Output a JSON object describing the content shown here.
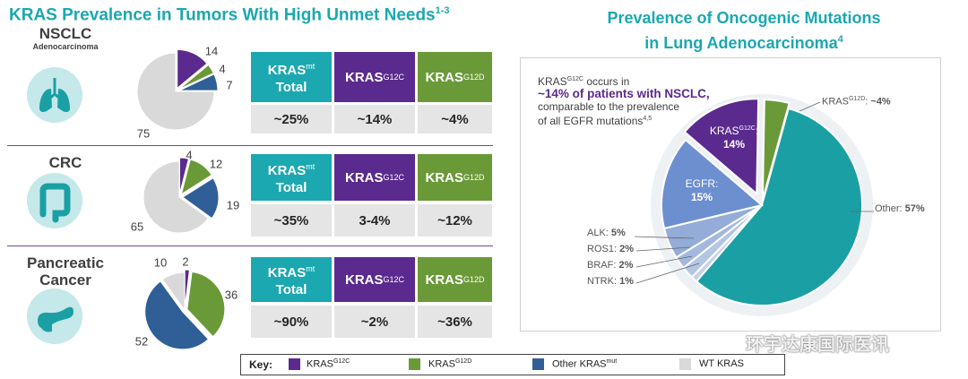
{
  "title_left": {
    "text": "KRAS Prevalence in Tumors With High Unmet Needs",
    "refs": "1-3"
  },
  "title_right": {
    "line1": "Prevalence of Oncogenic Mutations",
    "line2": "in Lung Adenocarcinoma",
    "ref": "4"
  },
  "table_headers": {
    "total": {
      "base": "KRAS",
      "sup": "mt",
      "suffix": "Total"
    },
    "g12c": {
      "base": "KRAS",
      "sup": "G12C"
    },
    "g12d": {
      "base": "KRAS",
      "sup": "G12D"
    }
  },
  "rows": [
    {
      "name": "NSCLC",
      "subname": "Adenocarcinoma",
      "total": "~25%",
      "g12c": "~14%",
      "g12d": "~4%"
    },
    {
      "name": "CRC",
      "subname": "",
      "total": "~35%",
      "g12c": "3-4%",
      "g12d": "~12%"
    },
    {
      "name": "Pancreatic Cancer",
      "subname": "",
      "total": "~90%",
      "g12c": "~2%",
      "g12d": "~36%"
    }
  ],
  "key": {
    "title": "Key:",
    "items": [
      {
        "base": "KRAS",
        "sup": "G12C",
        "color": "#5b2a8e"
      },
      {
        "base": "KRAS",
        "sup": "G12D",
        "color": "#6a9a38"
      },
      {
        "base": "Other KRAS",
        "sup": "mut",
        "color": "#2f5f96"
      },
      {
        "base": "WT KRAS",
        "sup": "",
        "color": "#d9d9d9"
      }
    ]
  },
  "callout": {
    "pre_base": "KRAS",
    "pre_sup": "G12C",
    "pre_after": " occurs in",
    "highlight": "~14% of patients with NSCLC,",
    "line3": "comparable to the prevalence",
    "line4": "of all EGFR mutations",
    "refs": "4,5"
  },
  "big_pie_labels": {
    "g12c_name": "KRAS",
    "g12c_sup": "G12C",
    "g12c_colon": ":",
    "g12c_value": "14%",
    "egfr_name": "EGFR:",
    "egfr_value": "15%",
    "g12d_name": "KRAS",
    "g12d_sup": "G12D",
    "g12d_colon": ": ",
    "g12d_value": "~4%",
    "other_name": "Other: ",
    "other_value": "57%",
    "alk_name": "ALK: ",
    "alk_value": "5%",
    "ros1_name": "ROS1: ",
    "ros1_value": "2%",
    "braf_name": "BRAF: ",
    "braf_value": "2%",
    "ntrk_name": "NTRK: ",
    "ntrk_value": "1%"
  },
  "watermark": "环宇达康国际医讯",
  "chart_data": [
    {
      "type": "pie",
      "title": "NSCLC Adenocarcinoma",
      "slices": [
        {
          "label": "KRAS G12C",
          "value": 14,
          "color": "#5b2a8e"
        },
        {
          "label": "KRAS G12D",
          "value": 4,
          "color": "#6a9a38"
        },
        {
          "label": "Other KRAS mut",
          "value": 7,
          "color": "#2f5f96"
        },
        {
          "label": "WT KRAS",
          "value": 75,
          "color": "#d9d9d9"
        }
      ]
    },
    {
      "type": "pie",
      "title": "CRC",
      "slices": [
        {
          "label": "KRAS G12C",
          "value": 4,
          "color": "#5b2a8e"
        },
        {
          "label": "KRAS G12D",
          "value": 12,
          "color": "#6a9a38"
        },
        {
          "label": "Other KRAS mut",
          "value": 19,
          "color": "#2f5f96"
        },
        {
          "label": "WT KRAS",
          "value": 65,
          "color": "#d9d9d9"
        }
      ]
    },
    {
      "type": "pie",
      "title": "Pancreatic Cancer",
      "slices": [
        {
          "label": "KRAS G12C",
          "value": 2,
          "color": "#5b2a8e"
        },
        {
          "label": "KRAS G12D",
          "value": 36,
          "color": "#6a9a38"
        },
        {
          "label": "Other KRAS mut",
          "value": 52,
          "color": "#2f5f96"
        },
        {
          "label": "WT KRAS",
          "value": 10,
          "color": "#d9d9d9"
        }
      ]
    },
    {
      "type": "pie",
      "title": "Prevalence of Oncogenic Mutations in Lung Adenocarcinoma",
      "slices": [
        {
          "label": "KRAS G12C",
          "value": 14,
          "color": "#5b2a8e"
        },
        {
          "label": "KRAS G12D",
          "value": 4,
          "color": "#6a9a38"
        },
        {
          "label": "Other",
          "value": 57,
          "color": "#1aa0a4"
        },
        {
          "label": "NTRK",
          "value": 1,
          "color": "#c6d3ea"
        },
        {
          "label": "BRAF",
          "value": 2,
          "color": "#b5c6e5"
        },
        {
          "label": "ROS1",
          "value": 2,
          "color": "#a3b8df"
        },
        {
          "label": "ALK",
          "value": 5,
          "color": "#93acd8"
        },
        {
          "label": "EGFR",
          "value": 15,
          "color": "#6c8fcf"
        }
      ]
    }
  ]
}
